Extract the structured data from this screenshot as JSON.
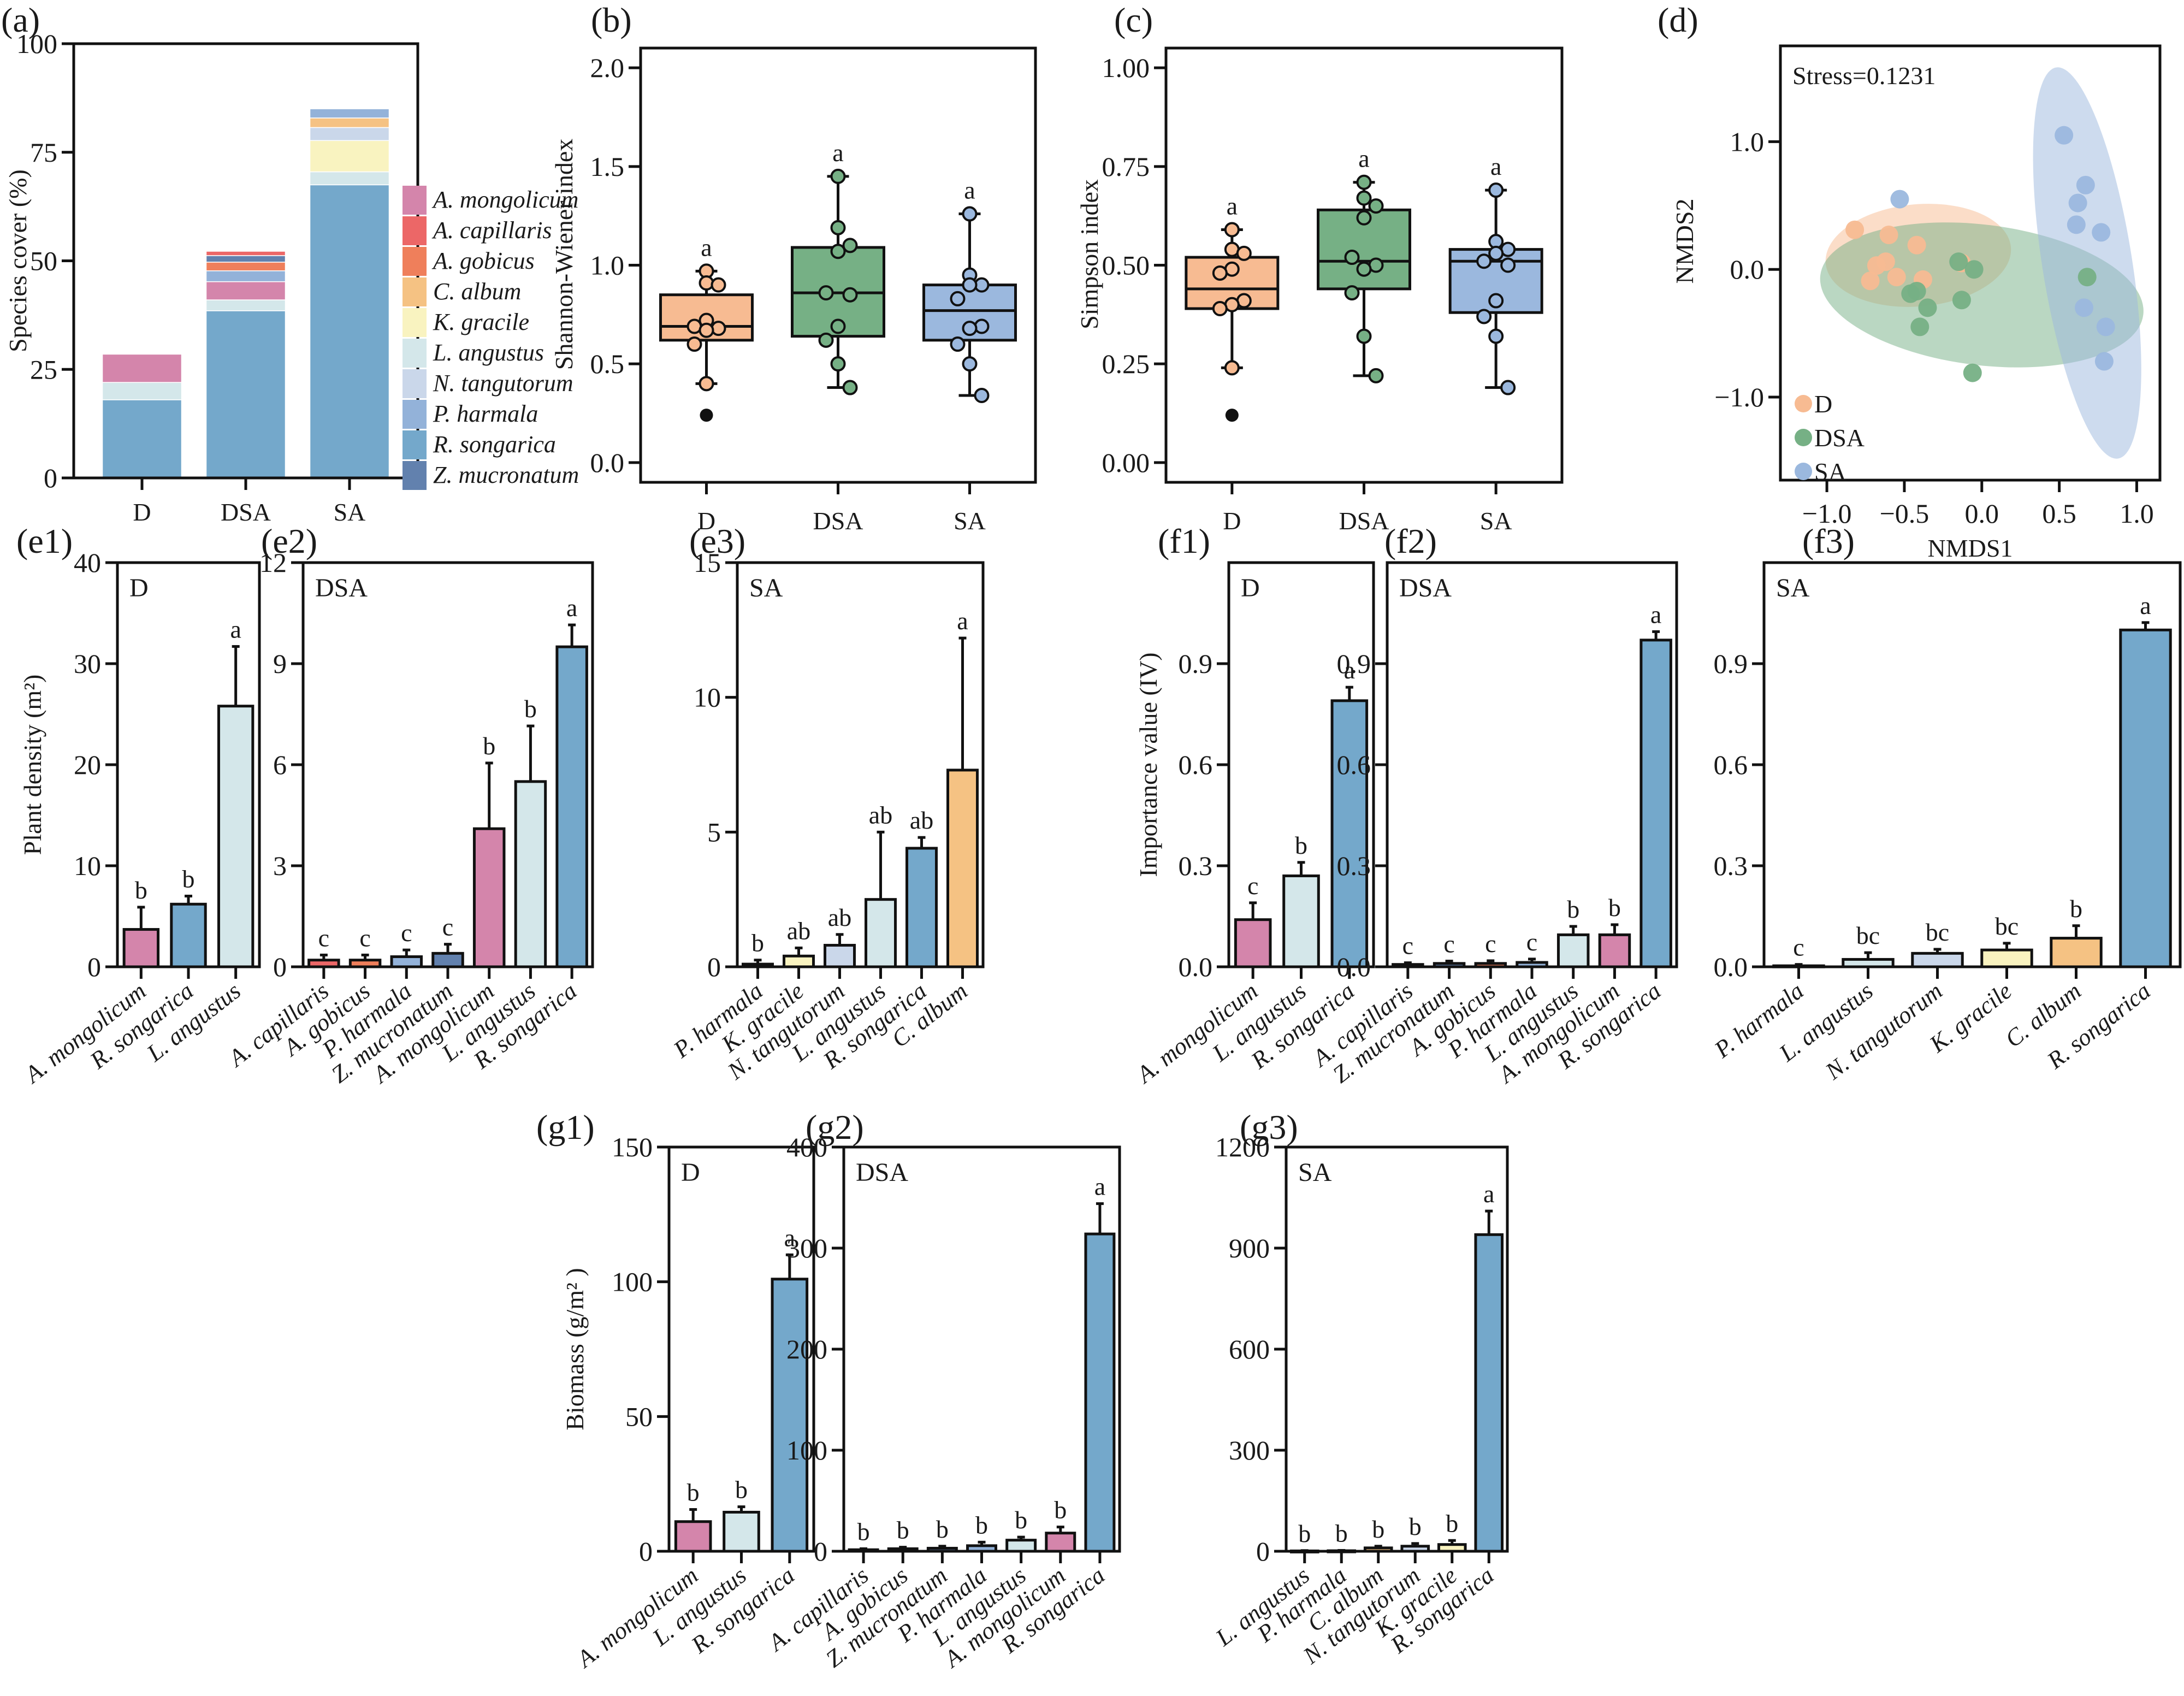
{
  "figure": {
    "colors": {
      "A. mongolicum": "#d485ab",
      "A. capillaris": "#ec6767",
      "A. gobicus": "#ef7f5b",
      "C. album": "#f5c283",
      "K. gracile": "#f9f3c0",
      "L. angustus": "#d4e7ea",
      "N. tangutorum": "#cad7ea",
      "P. harmala": "#93b2d9",
      "R. songarica": "#74a8cb",
      "Z. mucronatum": "#6281ae",
      "D": "#f7bb92",
      "DSA": "#76b085",
      "SA": "#9bb8de"
    }
  },
  "chart_data": [
    {
      "id": "a",
      "panel_label": "(a)",
      "type": "bar",
      "stacked": true,
      "ylabel": "Species cover (%)",
      "ylim": [
        0,
        100
      ],
      "yticks": [
        0,
        25,
        50,
        75,
        100
      ],
      "categories": [
        "D",
        "DSA",
        "SA"
      ],
      "legend": [
        "A. mongolicum",
        "A. capillaris",
        "A. gobicus",
        "C. album",
        "K. gracile",
        "L. angustus",
        "N. tangutorum",
        "P. harmala",
        "R. songarica",
        "Z. mucronatum"
      ],
      "legend_position": "right",
      "stacks": [
        {
          "category": "D",
          "segments": [
            {
              "species": "R. songarica",
              "value": 18.0
            },
            {
              "species": "L. angustus",
              "value": 4.0
            },
            {
              "species": "A. mongolicum",
              "value": 6.5
            }
          ]
        },
        {
          "category": "DSA",
          "segments": [
            {
              "species": "R. songarica",
              "value": 38.5
            },
            {
              "species": "L. angustus",
              "value": 2.5
            },
            {
              "species": "A. mongolicum",
              "value": 4.2
            },
            {
              "species": "P. harmala",
              "value": 2.5
            },
            {
              "species": "A. gobicus",
              "value": 2.0
            },
            {
              "species": "Z. mucronatum",
              "value": 1.5
            },
            {
              "species": "A. capillaris",
              "value": 1.0
            }
          ]
        },
        {
          "category": "SA",
          "segments": [
            {
              "species": "R. songarica",
              "value": 67.5
            },
            {
              "species": "L. angustus",
              "value": 3.0
            },
            {
              "species": "K. gracile",
              "value": 7.2
            },
            {
              "species": "N. tangutorum",
              "value": 3.0
            },
            {
              "species": "C. album",
              "value": 2.2
            },
            {
              "species": "P. harmala",
              "value": 2.1
            }
          ]
        }
      ]
    },
    {
      "id": "b",
      "panel_label": "(b)",
      "type": "box",
      "ylabel": "Shannon-Wiener index",
      "ylim": [
        -0.1,
        2.1
      ],
      "yticks": [
        "0.0",
        "0.5",
        "1.0",
        "1.5",
        "2.0"
      ],
      "categories": [
        "D",
        "DSA",
        "SA"
      ],
      "boxes": [
        {
          "group": "D",
          "q1": 0.62,
          "median": 0.69,
          "q3": 0.85,
          "whisker_low": 0.4,
          "whisker_high": 0.97,
          "outliers": [
            0.24
          ],
          "points": [
            0.97,
            0.91,
            0.9,
            0.72,
            0.69,
            0.68,
            0.67,
            0.6,
            0.4
          ],
          "letter": "a"
        },
        {
          "group": "DSA",
          "q1": 0.64,
          "median": 0.86,
          "q3": 1.09,
          "whisker_low": 0.38,
          "whisker_high": 1.45,
          "outliers": [],
          "points": [
            1.45,
            1.19,
            1.1,
            1.07,
            0.86,
            0.85,
            0.69,
            0.62,
            0.5,
            0.38
          ],
          "letter": "a"
        },
        {
          "group": "SA",
          "q1": 0.62,
          "median": 0.77,
          "q3": 0.9,
          "whisker_low": 0.34,
          "whisker_high": 1.26,
          "outliers": [],
          "points": [
            1.26,
            0.95,
            0.9,
            0.9,
            0.83,
            0.69,
            0.68,
            0.6,
            0.5,
            0.34
          ],
          "letter": "a"
        }
      ]
    },
    {
      "id": "c",
      "panel_label": "(c)",
      "type": "box",
      "ylabel": "Simpson index",
      "ylim": [
        -0.05,
        1.05
      ],
      "yticks": [
        "0.00",
        "0.25",
        "0.50",
        "0.75",
        "1.00"
      ],
      "categories": [
        "D",
        "DSA",
        "SA"
      ],
      "boxes": [
        {
          "group": "D",
          "q1": 0.39,
          "median": 0.44,
          "q3": 0.52,
          "whisker_low": 0.24,
          "whisker_high": 0.59,
          "outliers": [
            0.12
          ],
          "points": [
            0.59,
            0.54,
            0.53,
            0.49,
            0.48,
            0.41,
            0.4,
            0.39,
            0.24
          ],
          "letter": "a"
        },
        {
          "group": "DSA",
          "q1": 0.44,
          "median": 0.51,
          "q3": 0.64,
          "whisker_low": 0.22,
          "whisker_high": 0.71,
          "outliers": [],
          "points": [
            0.71,
            0.67,
            0.65,
            0.62,
            0.52,
            0.5,
            0.49,
            0.43,
            0.32,
            0.22
          ],
          "letter": "a"
        },
        {
          "group": "SA",
          "q1": 0.38,
          "median": 0.51,
          "q3": 0.54,
          "whisker_low": 0.19,
          "whisker_high": 0.69,
          "outliers": [],
          "points": [
            0.69,
            0.56,
            0.54,
            0.53,
            0.51,
            0.5,
            0.41,
            0.37,
            0.32,
            0.19
          ],
          "letter": "a"
        }
      ]
    },
    {
      "id": "d",
      "panel_label": "(d)",
      "type": "scatter",
      "annotation": "Stress=0.1231",
      "xlabel": "NMDS1",
      "ylabel": "NMDS2",
      "xlim": [
        -1.3,
        1.15
      ],
      "ylim": [
        -1.65,
        1.75
      ],
      "xticks": [
        "−1.0",
        "−0.5",
        "0.0",
        "0.5",
        "1.0"
      ],
      "yticks": [
        "−1.0",
        "0.0",
        "1.0"
      ],
      "legend_position": "bottom-left",
      "series": [
        {
          "name": "D",
          "points": [
            [
              -0.82,
              0.31
            ],
            [
              -0.6,
              0.27
            ],
            [
              -0.42,
              0.19
            ],
            [
              -0.62,
              0.06
            ],
            [
              -0.68,
              0.03
            ],
            [
              -0.72,
              -0.09
            ],
            [
              -0.55,
              -0.06
            ],
            [
              -0.38,
              -0.08
            ],
            [
              -0.13,
              0.05
            ]
          ],
          "ellipse": {
            "cx": -0.41,
            "cy": 0.11,
            "rx": 0.6,
            "ry": 0.4,
            "angle_deg": -5
          }
        },
        {
          "name": "DSA",
          "points": [
            [
              -0.15,
              0.06
            ],
            [
              -0.05,
              0.0
            ],
            [
              -0.46,
              -0.19
            ],
            [
              -0.42,
              -0.17
            ],
            [
              -0.35,
              -0.3
            ],
            [
              -0.13,
              -0.24
            ],
            [
              -0.4,
              -0.45
            ],
            [
              -0.06,
              -0.81
            ],
            [
              0.68,
              -0.06
            ]
          ],
          "ellipse": {
            "cx": 0.0,
            "cy": -0.2,
            "rx": 1.05,
            "ry": 0.55,
            "angle_deg": 7
          }
        },
        {
          "name": "SA",
          "points": [
            [
              0.53,
              1.05
            ],
            [
              0.67,
              0.66
            ],
            [
              0.62,
              0.52
            ],
            [
              0.61,
              0.35
            ],
            [
              0.77,
              0.29
            ],
            [
              0.66,
              -0.3
            ],
            [
              0.8,
              -0.45
            ],
            [
              0.79,
              -0.72
            ],
            [
              -0.53,
              0.55
            ]
          ],
          "ellipse": {
            "cx": 0.68,
            "cy": 0.05,
            "rx": 0.29,
            "ry": 1.55,
            "angle_deg": -9
          }
        }
      ]
    },
    {
      "id": "e1",
      "panel_label": "(e1)",
      "type": "bar",
      "inset": "D",
      "ylabel": "Plant density (m²)",
      "ylim": [
        0,
        40
      ],
      "yticks": [
        "0",
        "10",
        "20",
        "30",
        "40"
      ],
      "bars": [
        {
          "species": "A. mongolicum",
          "value": 3.7,
          "err": 2.2,
          "letter": "b"
        },
        {
          "species": "R. songarica",
          "value": 6.2,
          "err": 0.8,
          "letter": "b"
        },
        {
          "species": "L. angustus",
          "value": 25.8,
          "err": 5.9,
          "letter": "a"
        }
      ]
    },
    {
      "id": "e2",
      "panel_label": "(e2)",
      "type": "bar",
      "inset": "DSA",
      "ylabel": "",
      "ylim": [
        0,
        12
      ],
      "yticks": [
        "0",
        "3",
        "6",
        "9",
        "12"
      ],
      "bars": [
        {
          "species": "A. capillaris",
          "value": 0.2,
          "err": 0.15,
          "letter": "c"
        },
        {
          "species": "A. gobicus",
          "value": 0.2,
          "err": 0.15,
          "letter": "c"
        },
        {
          "species": "P. harmala",
          "value": 0.3,
          "err": 0.2,
          "letter": "c"
        },
        {
          "species": "Z. mucronatum",
          "value": 0.4,
          "err": 0.27,
          "letter": "c"
        },
        {
          "species": "A. mongolicum",
          "value": 4.1,
          "err": 1.95,
          "letter": "b"
        },
        {
          "species": "L. angustus",
          "value": 5.5,
          "err": 1.65,
          "letter": "b"
        },
        {
          "species": "R. songarica",
          "value": 9.5,
          "err": 0.65,
          "letter": "a"
        }
      ]
    },
    {
      "id": "e3",
      "panel_label": "(e3)",
      "type": "bar",
      "inset": "SA",
      "ylabel": "",
      "ylim": [
        0,
        15
      ],
      "yticks": [
        "0",
        "5",
        "10",
        "15"
      ],
      "bars": [
        {
          "species": "P. harmala",
          "value": 0.1,
          "err": 0.15,
          "letter": "b"
        },
        {
          "species": "K. gracile",
          "value": 0.4,
          "err": 0.3,
          "letter": "ab"
        },
        {
          "species": "N. tangutorum",
          "value": 0.8,
          "err": 0.4,
          "letter": "ab"
        },
        {
          "species": "L. angustus",
          "value": 2.5,
          "err": 2.5,
          "letter": "ab"
        },
        {
          "species": "R. songarica",
          "value": 4.4,
          "err": 0.4,
          "letter": "ab"
        },
        {
          "species": "C. album",
          "value": 7.3,
          "err": 4.9,
          "letter": "a"
        }
      ]
    },
    {
      "id": "f1",
      "panel_label": "(f1)",
      "type": "bar",
      "inset": "D",
      "ylabel": "Importance value (IV)",
      "ylim": [
        0,
        1.2
      ],
      "yticks": [
        "0.0",
        "0.3",
        "0.6",
        "0.9"
      ],
      "bars": [
        {
          "species": "A. mongolicum",
          "value": 0.14,
          "err": 0.05,
          "letter": "c"
        },
        {
          "species": "L. angustus",
          "value": 0.27,
          "err": 0.04,
          "letter": "b"
        },
        {
          "species": "R. songarica",
          "value": 0.79,
          "err": 0.04,
          "letter": "a"
        }
      ]
    },
    {
      "id": "f2",
      "panel_label": "(f2)",
      "type": "bar",
      "inset": "DSA",
      "ylabel": "",
      "ylim": [
        0,
        1.2
      ],
      "yticks": [
        "0.0",
        "0.3",
        "0.6",
        "0.9"
      ],
      "bars": [
        {
          "species": "A. capillaris",
          "value": 0.007,
          "err": 0.005,
          "letter": "c"
        },
        {
          "species": "Z. mucronatum",
          "value": 0.01,
          "err": 0.007,
          "letter": "c"
        },
        {
          "species": "A. gobicus",
          "value": 0.01,
          "err": 0.008,
          "letter": "c"
        },
        {
          "species": "P. harmala",
          "value": 0.013,
          "err": 0.01,
          "letter": "c"
        },
        {
          "species": "L. angustus",
          "value": 0.095,
          "err": 0.025,
          "letter": "b"
        },
        {
          "species": "A. mongolicum",
          "value": 0.095,
          "err": 0.03,
          "letter": "b"
        },
        {
          "species": "R. songarica",
          "value": 0.97,
          "err": 0.025,
          "letter": "a"
        }
      ]
    },
    {
      "id": "f3",
      "panel_label": "(f3)",
      "type": "bar",
      "inset": "SA",
      "ylabel": "",
      "ylim": [
        0,
        1.2
      ],
      "yticks": [
        "0.0",
        "0.3",
        "0.6",
        "0.9"
      ],
      "bars": [
        {
          "species": "P. harmala",
          "value": 0.003,
          "err": 0.004,
          "letter": "c"
        },
        {
          "species": "L. angustus",
          "value": 0.022,
          "err": 0.02,
          "letter": "bc"
        },
        {
          "species": "N. tangutorum",
          "value": 0.04,
          "err": 0.012,
          "letter": "bc"
        },
        {
          "species": "K. gracile",
          "value": 0.05,
          "err": 0.02,
          "letter": "bc"
        },
        {
          "species": "C. album",
          "value": 0.085,
          "err": 0.037,
          "letter": "b"
        },
        {
          "species": "R. songarica",
          "value": 1.0,
          "err": 0.022,
          "letter": "a"
        }
      ]
    },
    {
      "id": "g1",
      "panel_label": "(g1)",
      "type": "bar",
      "inset": "D",
      "ylabel": "Biomass (g/m² )",
      "ylim": [
        0,
        150
      ],
      "yticks": [
        "0",
        "50",
        "100",
        "150"
      ],
      "bars": [
        {
          "species": "A. mongolicum",
          "value": 11.0,
          "err": 4.5,
          "letter": "b"
        },
        {
          "species": "L. angustus",
          "value": 14.5,
          "err": 2.0,
          "letter": "b"
        },
        {
          "species": "R. songarica",
          "value": 101.0,
          "err": 9.0,
          "letter": "a"
        }
      ]
    },
    {
      "id": "g2",
      "panel_label": "(g2)",
      "type": "bar",
      "inset": "DSA",
      "ylabel": "",
      "ylim": [
        0,
        400
      ],
      "yticks": [
        "0",
        "100",
        "200",
        "300",
        "400"
      ],
      "bars": [
        {
          "species": "A. capillaris",
          "value": 1.5,
          "err": 1.0,
          "letter": "b"
        },
        {
          "species": "A. gobicus",
          "value": 2.5,
          "err": 1.5,
          "letter": "b"
        },
        {
          "species": "Z. mucronatum",
          "value": 3.0,
          "err": 2.0,
          "letter": "b"
        },
        {
          "species": "P. harmala",
          "value": 5.5,
          "err": 3.5,
          "letter": "b"
        },
        {
          "species": "L. angustus",
          "value": 11.0,
          "err": 3.0,
          "letter": "b"
        },
        {
          "species": "A. mongolicum",
          "value": 18.0,
          "err": 6.0,
          "letter": "b"
        },
        {
          "species": "R. songarica",
          "value": 314.0,
          "err": 30.0,
          "letter": "a"
        }
      ]
    },
    {
      "id": "g3",
      "panel_label": "(g3)",
      "type": "bar",
      "inset": "SA",
      "ylabel": "",
      "ylim": [
        0,
        1200
      ],
      "yticks": [
        "0",
        "300",
        "600",
        "900",
        "1200"
      ],
      "bars": [
        {
          "species": "L. angustus",
          "value": 1.0,
          "err": 1.0,
          "letter": "b"
        },
        {
          "species": "P. harmala",
          "value": 1.5,
          "err": 1.0,
          "letter": "b"
        },
        {
          "species": "C. album",
          "value": 10.0,
          "err": 5.0,
          "letter": "b"
        },
        {
          "species": "N. tangutorum",
          "value": 15.0,
          "err": 8.0,
          "letter": "b"
        },
        {
          "species": "K. gracile",
          "value": 20.0,
          "err": 12.0,
          "letter": "b"
        },
        {
          "species": "R. songarica",
          "value": 940.0,
          "err": 70.0,
          "letter": "a"
        }
      ]
    }
  ]
}
